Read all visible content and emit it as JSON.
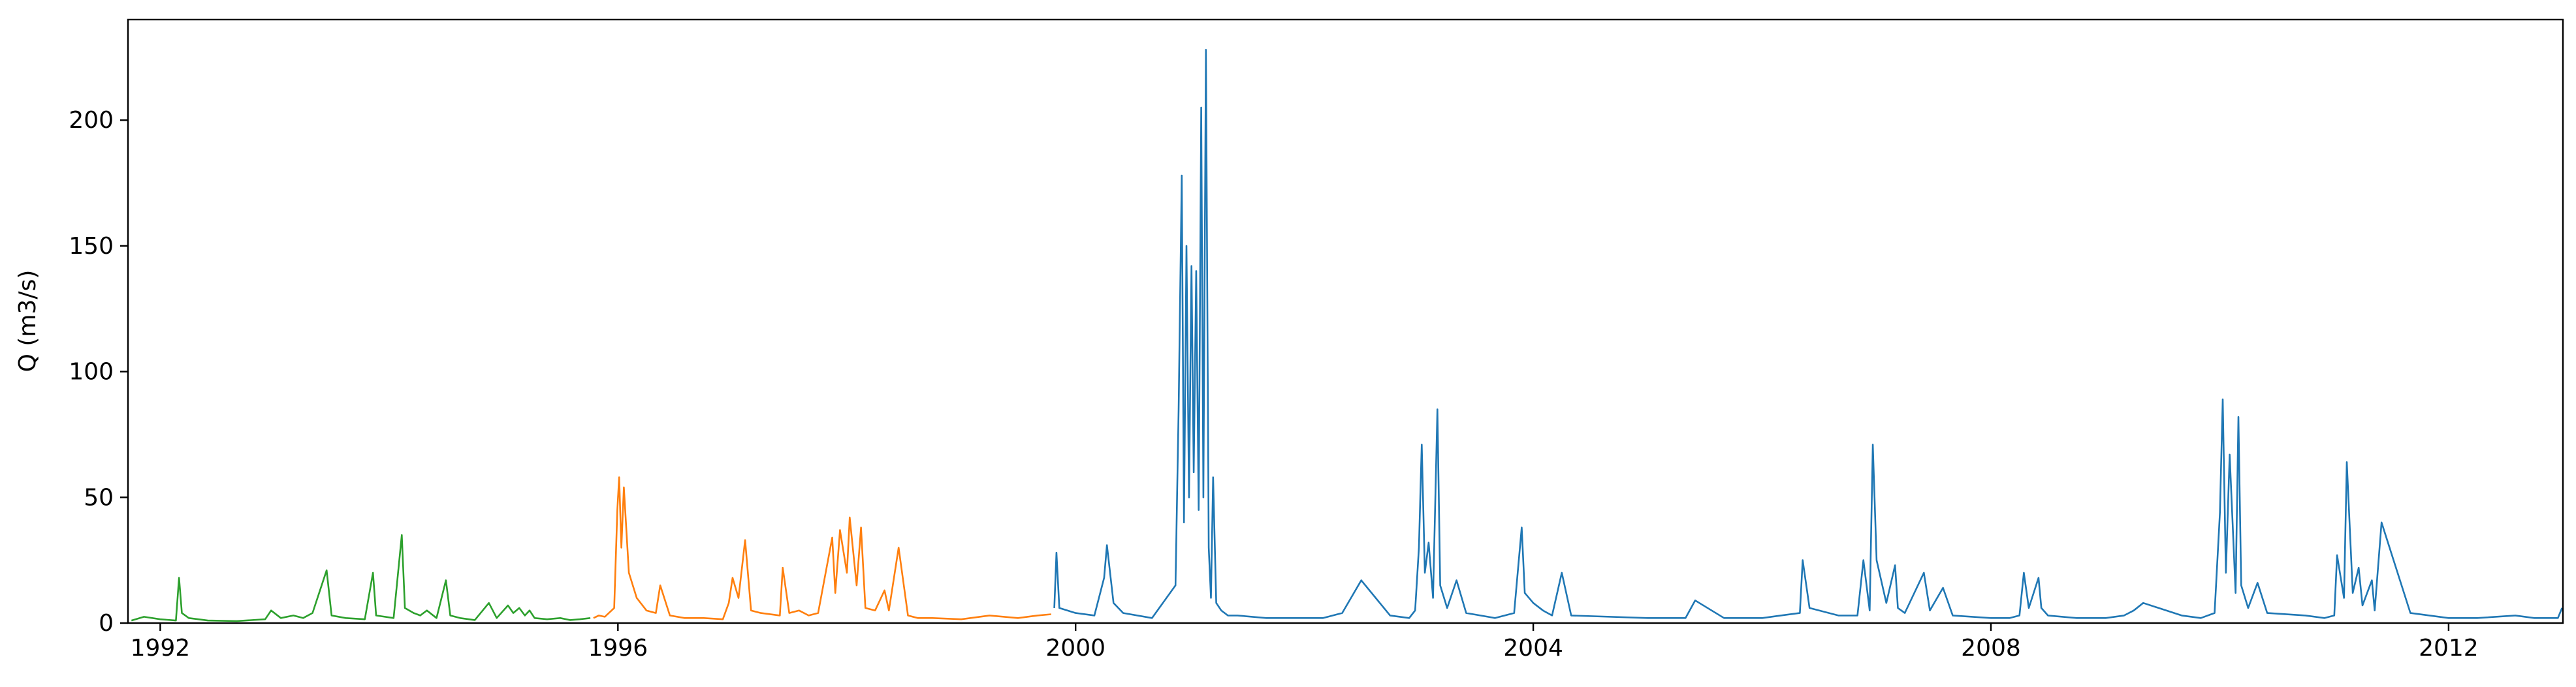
{
  "chart_data": {
    "type": "line",
    "title": "",
    "xlabel": "",
    "ylabel": "Q (m3/s)",
    "xlim": [
      "1991-09-20",
      "2012-12-31"
    ],
    "ylim": [
      0,
      240
    ],
    "xticks": [
      "1992",
      "1996",
      "2000",
      "2004",
      "2008",
      "2012"
    ],
    "yticks": [
      0,
      50,
      100,
      150,
      200
    ],
    "grid": false,
    "legend": "none",
    "series": [
      {
        "color": "#2ca02c",
        "x": [
          "1991-10-01",
          "1991-11-10",
          "1992-01-01",
          "1992-02-20",
          "1992-03-01",
          "1992-03-10",
          "1992-04-01",
          "1992-06-01",
          "1992-09-01",
          "1992-12-01",
          "1992-12-20",
          "1993-01-20",
          "1993-03-01",
          "1993-04-01",
          "1993-05-01",
          "1993-06-15",
          "1993-07-01",
          "1993-08-15",
          "1993-10-15",
          "1993-11-10",
          "1993-11-20",
          "1994-01-15",
          "1994-02-10",
          "1994-02-20",
          "1994-03-20",
          "1994-04-10",
          "1994-05-01",
          "1994-06-01",
          "1994-07-01",
          "1994-07-15",
          "1994-08-15",
          "1994-10-01",
          "1994-11-15",
          "1994-12-10",
          "1995-01-15",
          "1995-02-01",
          "1995-02-20",
          "1995-03-10",
          "1995-03-25",
          "1995-04-10",
          "1995-05-20",
          "1995-07-01",
          "1995-08-01",
          "1995-09-01",
          "1995-10-05"
        ],
        "y": [
          1.0,
          2.5,
          1.5,
          1.0,
          18,
          4,
          2,
          1,
          0.8,
          1.5,
          5,
          2,
          3,
          2,
          4,
          21,
          3,
          2,
          1.5,
          20,
          3,
          2,
          35,
          6,
          4,
          3,
          5,
          2,
          17,
          3,
          2,
          1.2,
          8,
          2,
          7,
          4,
          6,
          3,
          5,
          2,
          1.5,
          2,
          1.2,
          1.5,
          2
        ]
      },
      {
        "color": "#ff7f0e",
        "x": [
          "1995-10-15",
          "1995-11-01",
          "1995-11-20",
          "1995-12-20",
          "1995-12-30",
          "1996-01-05",
          "1996-01-12",
          "1996-01-20",
          "1996-02-05",
          "1996-03-01",
          "1996-04-01",
          "1996-05-01",
          "1996-05-15",
          "1996-06-15",
          "1996-08-01",
          "1996-10-01",
          "1996-12-01",
          "1996-12-20",
          "1997-01-01",
          "1997-01-20",
          "1997-02-10",
          "1997-03-01",
          "1997-04-01",
          "1997-06-01",
          "1997-06-10",
          "1997-07-01",
          "1997-08-01",
          "1997-09-01",
          "1997-10-01",
          "1997-11-15",
          "1997-11-25",
          "1997-12-10",
          "1998-01-01",
          "1998-01-10",
          "1998-02-01",
          "1998-02-15",
          "1998-03-01",
          "1998-04-01",
          "1998-05-01",
          "1998-05-15",
          "1998-06-15",
          "1998-07-15",
          "1998-08-15",
          "1998-10-01",
          "1999-01-01",
          "1999-04-01",
          "1999-07-01",
          "1999-09-01",
          "1999-10-15"
        ],
        "y": [
          2,
          3,
          2.5,
          6,
          45,
          58,
          30,
          54,
          20,
          10,
          5,
          4,
          15,
          3,
          2,
          2,
          1.5,
          8,
          18,
          10,
          33,
          5,
          4,
          3,
          22,
          4,
          5,
          3,
          4,
          34,
          12,
          37,
          20,
          42,
          15,
          38,
          6,
          5,
          13,
          5,
          30,
          3,
          2,
          2,
          1.5,
          3,
          2,
          3,
          3.5
        ]
      },
      {
        "color": "#1f77b4",
        "x": [
          "1999-10-25",
          "1999-11-01",
          "1999-11-10",
          "2000-01-01",
          "2000-03-01",
          "2000-04-01",
          "2000-04-10",
          "2000-05-01",
          "2000-06-01",
          "2000-09-01",
          "2000-11-15",
          "2000-11-25",
          "2000-12-05",
          "2000-12-12",
          "2000-12-20",
          "2000-12-28",
          "2001-01-05",
          "2001-01-12",
          "2001-01-20",
          "2001-01-28",
          "2001-02-05",
          "2001-02-12",
          "2001-02-20",
          "2001-03-01",
          "2001-03-08",
          "2001-03-15",
          "2001-03-25",
          "2001-04-10",
          "2001-05-01",
          "2001-06-01",
          "2001-09-01",
          "2002-01-01",
          "2002-03-01",
          "2002-04-01",
          "2002-05-01",
          "2002-07-01",
          "2002-10-01",
          "2002-12-01",
          "2002-12-20",
          "2003-01-01",
          "2003-01-10",
          "2003-01-20",
          "2003-02-01",
          "2003-02-15",
          "2003-03-01",
          "2003-03-10",
          "2003-04-01",
          "2003-05-01",
          "2003-06-01",
          "2003-09-01",
          "2003-11-01",
          "2003-11-25",
          "2003-12-05",
          "2004-01-01",
          "2004-02-01",
          "2004-03-01",
          "2004-04-01",
          "2004-05-01",
          "2005-01-01",
          "2005-05-01",
          "2005-06-01",
          "2005-09-01",
          "2006-01-01",
          "2006-03-01",
          "2006-05-01",
          "2006-05-10",
          "2006-06-01",
          "2006-09-01",
          "2006-11-01",
          "2006-11-20",
          "2006-12-10",
          "2006-12-20",
          "2007-01-01",
          "2007-02-01",
          "2007-03-01",
          "2007-03-10",
          "2007-04-01",
          "2007-06-01",
          "2007-06-20",
          "2007-08-01",
          "2007-09-01",
          "2008-01-01",
          "2008-03-01",
          "2008-04-01",
          "2008-04-15",
          "2008-05-01",
          "2008-06-01",
          "2008-06-10",
          "2008-07-01",
          "2008-10-01",
          "2009-01-01",
          "2009-03-01",
          "2009-04-01",
          "2009-05-01",
          "2009-09-01",
          "2009-11-01",
          "2009-12-15",
          "2010-01-01",
          "2010-01-10",
          "2010-01-20",
          "2010-02-01",
          "2010-02-20",
          "2010-03-01",
          "2010-03-10",
          "2010-04-01",
          "2010-05-01",
          "2010-06-01",
          "2010-10-01",
          "2010-12-01",
          "2011-01-01",
          "2011-01-10",
          "2011-02-01",
          "2011-02-10",
          "2011-03-01",
          "2011-03-20",
          "2011-04-01",
          "2011-05-01",
          "2011-05-10",
          "2011-06-01",
          "2011-09-01",
          "2012-01-01",
          "2012-04-01",
          "2012-08-01",
          "2012-10-01",
          "2012-12-15",
          "2012-12-28"
        ],
        "y": [
          6,
          28,
          6,
          4,
          3,
          18,
          31,
          8,
          4,
          2,
          15,
          85,
          178,
          40,
          150,
          50,
          142,
          60,
          140,
          45,
          205,
          50,
          228,
          30,
          10,
          58,
          8,
          5,
          3,
          3,
          2,
          2,
          2,
          3,
          4,
          17,
          3,
          2,
          5,
          30,
          71,
          20,
          32,
          10,
          85,
          15,
          6,
          17,
          4,
          2,
          4,
          38,
          12,
          8,
          5,
          3,
          20,
          3,
          2,
          2,
          9,
          2,
          2,
          3,
          4,
          25,
          6,
          3,
          3,
          25,
          5,
          71,
          25,
          8,
          23,
          6,
          4,
          20,
          5,
          14,
          3,
          2,
          2,
          3,
          20,
          6,
          18,
          6,
          3,
          2,
          2,
          3,
          5,
          8,
          3,
          2,
          4,
          44,
          89,
          20,
          67,
          12,
          82,
          15,
          6,
          16,
          4,
          3,
          2,
          3,
          27,
          10,
          64,
          12,
          22,
          7,
          17,
          5,
          40,
          4,
          2,
          2,
          3,
          2,
          2,
          6
        ]
      }
    ]
  }
}
